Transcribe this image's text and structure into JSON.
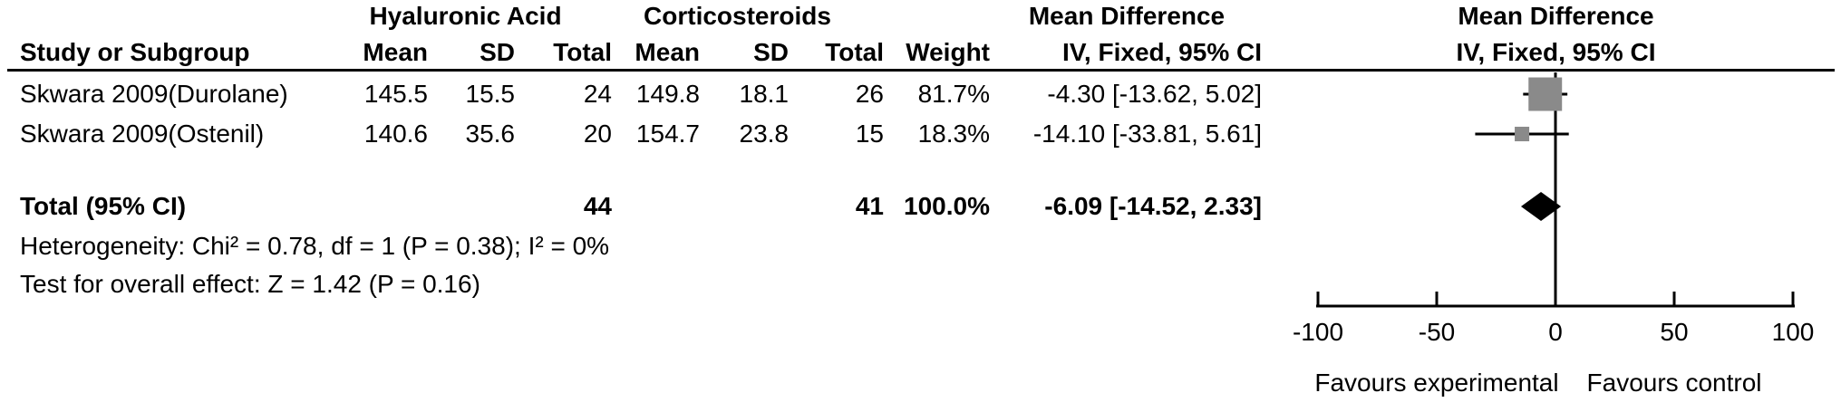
{
  "chart_data": {
    "type": "forest",
    "title": "",
    "headers": {
      "study": "Study or Subgroup",
      "group_experimental": "Hyaluronic Acid",
      "group_control": "Corticosteroids",
      "mean": "Mean",
      "sd": "SD",
      "total": "Total",
      "weight": "Weight",
      "effect": "Mean Difference",
      "method": "IV, Fixed, 95% CI"
    },
    "studies": [
      {
        "name": "Skwara 2009(Durolane)",
        "mean_e": "145.5",
        "sd_e": "15.5",
        "n_e": "24",
        "mean_c": "149.8",
        "sd_c": "18.1",
        "n_c": "26",
        "weight": "81.7%",
        "weight_pct": 81.7,
        "md": -4.3,
        "ci_low": -13.62,
        "ci_high": 5.02,
        "ci_label": "-4.30 [-13.62, 5.02]"
      },
      {
        "name": "Skwara 2009(Ostenil)",
        "mean_e": "140.6",
        "sd_e": "35.6",
        "n_e": "20",
        "mean_c": "154.7",
        "sd_c": "23.8",
        "n_c": "15",
        "weight": "18.3%",
        "weight_pct": 18.3,
        "md": -14.1,
        "ci_low": -33.81,
        "ci_high": 5.61,
        "ci_label": "-14.10 [-33.81, 5.61]"
      }
    ],
    "total": {
      "name": "Total (95% CI)",
      "n_e": "44",
      "n_c": "41",
      "weight": "100.0%",
      "md": -6.09,
      "ci_low": -14.52,
      "ci_high": 2.33,
      "ci_label": "-6.09 [-14.52, 2.33]"
    },
    "heterogeneity": "Heterogeneity: Chi² = 0.78, df = 1 (P = 0.38); I² = 0%",
    "overall_effect": "Test for overall effect: Z = 1.42 (P = 0.16)",
    "xaxis": {
      "min": -100,
      "max": 100,
      "ticks": [
        -100,
        -50,
        0,
        50,
        100
      ],
      "favours_left": "Favours experimental",
      "favours_right": "Favours control"
    },
    "colors": {
      "square": "#8a8a8a",
      "diamond": "#000000",
      "line": "#000000",
      "text": "#000000",
      "background": "#ffffff"
    }
  }
}
